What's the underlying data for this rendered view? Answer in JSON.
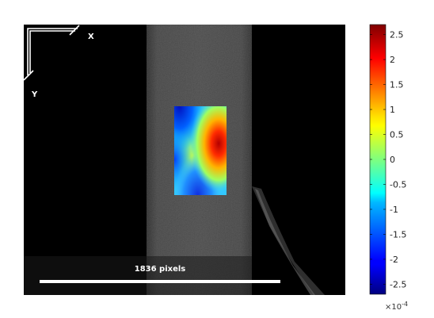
{
  "axes": {
    "x_label": "X",
    "y_label": "Y"
  },
  "scale_bar": {
    "label": "1836 pixels"
  },
  "colorbar": {
    "ticks": [
      "2.5",
      "2",
      "1.5",
      "1",
      "0.5",
      "0",
      "-0.5",
      "-1",
      "-1.5",
      "-2",
      "-2.5"
    ],
    "tick_values": [
      2.5,
      2,
      1.5,
      1,
      0.5,
      0,
      -0.5,
      -1,
      -1.5,
      -2,
      -2.5
    ],
    "range": [
      -2.7,
      2.7
    ],
    "exponent_base": "×10",
    "exponent_power": "-4",
    "colormap": "jet"
  }
}
